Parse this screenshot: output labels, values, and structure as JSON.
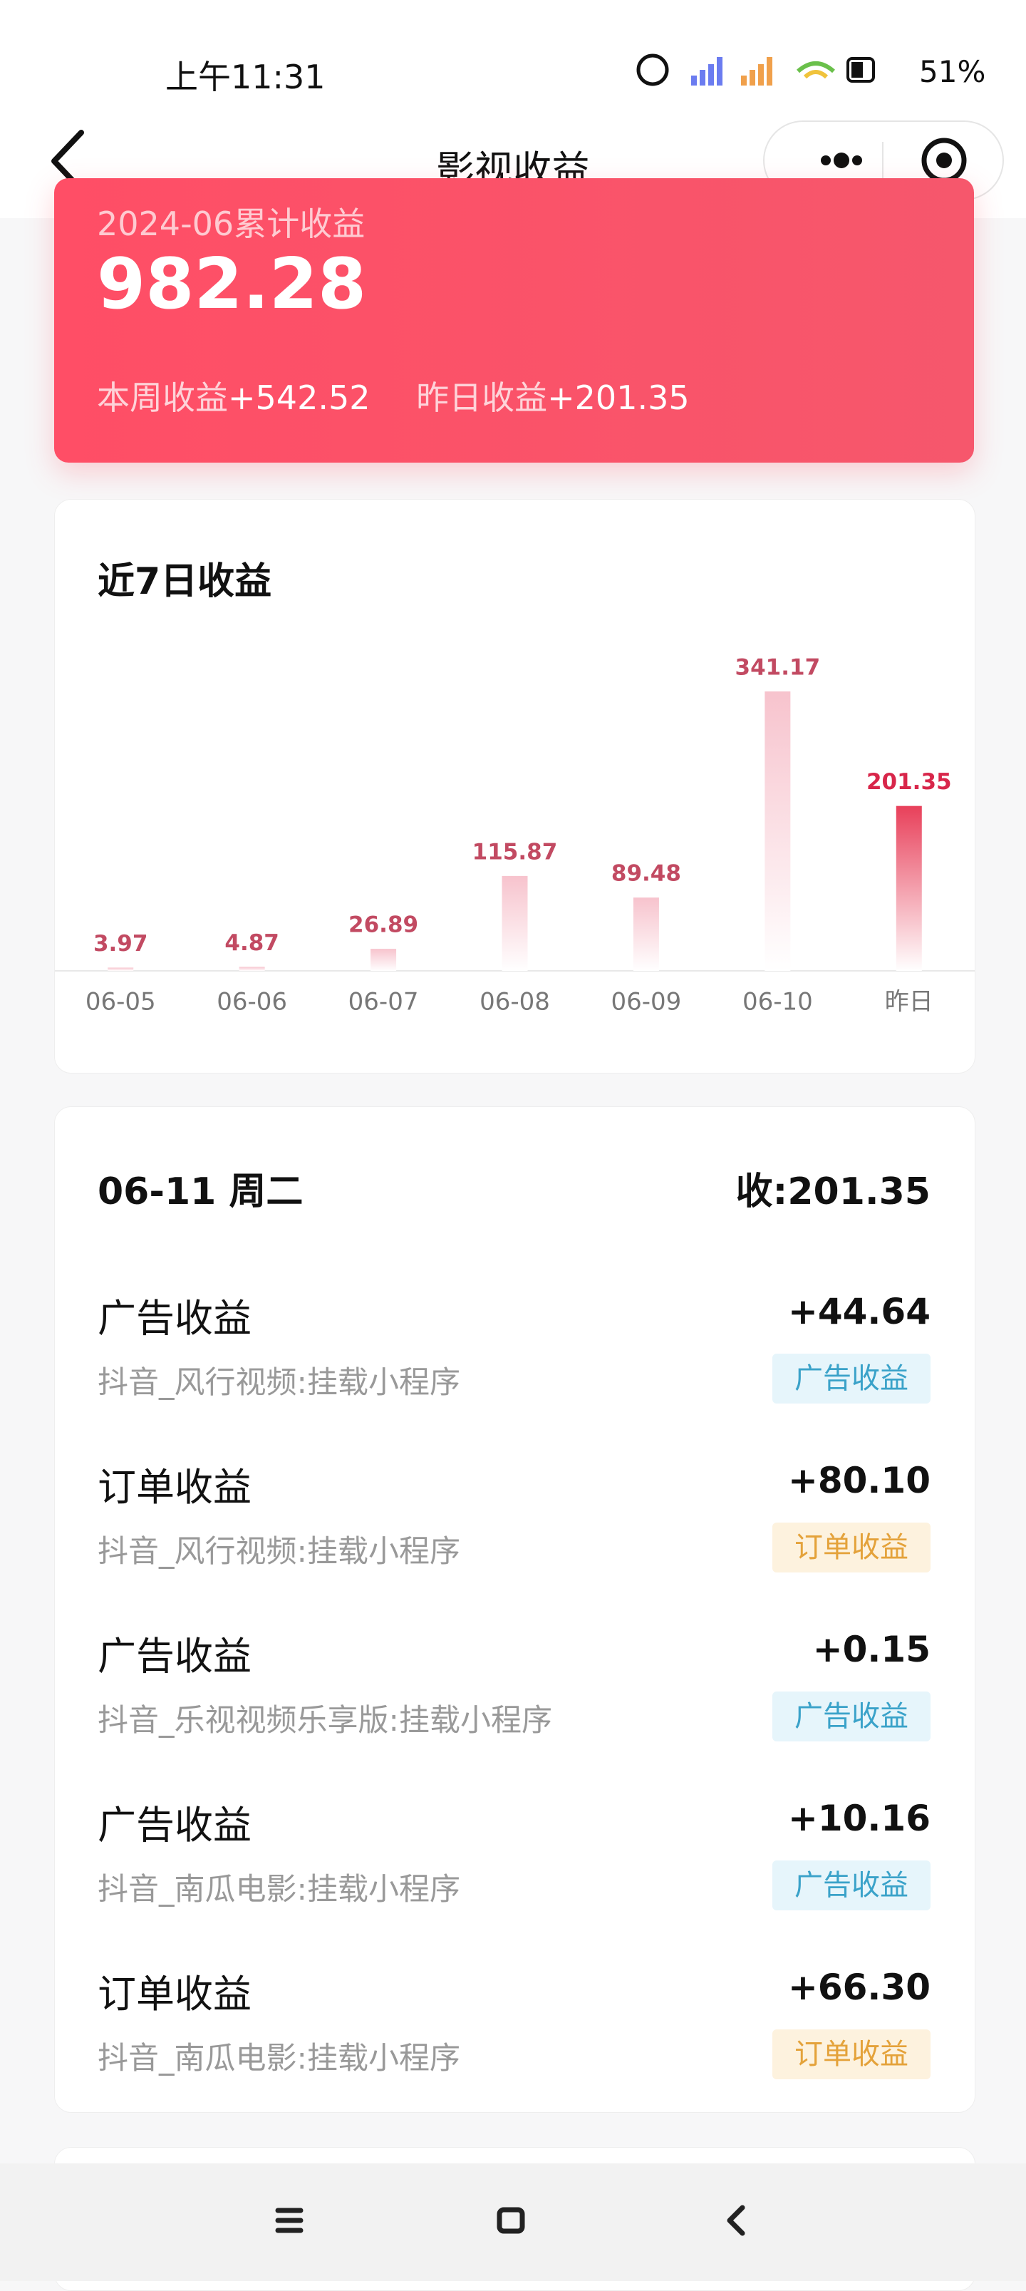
{
  "status_bar": {
    "time": "上午11:31",
    "battery": "51%"
  },
  "nav": {
    "title": "影视收益"
  },
  "summary": {
    "label": "2024-06累计收益",
    "total": "982.28",
    "week_label": "本周收益",
    "week_value": "+542.52",
    "yesterday_label": "昨日收益",
    "yesterday_value": "+201.35"
  },
  "chart_data": {
    "type": "bar",
    "title": "近7日收益",
    "categories": [
      "06-05",
      "06-06",
      "06-07",
      "06-08",
      "06-09",
      "06-10",
      "昨日"
    ],
    "values": [
      3.97,
      4.87,
      26.89,
      115.87,
      89.48,
      341.17,
      201.35
    ],
    "colors": [
      "#f7c3cd",
      "#f7c3cd",
      "#f7c3cd",
      "#f7c3cd",
      "#f7c3cd",
      "#f7c3cd",
      "#e8405a"
    ],
    "label_colors": [
      "#c24a62",
      "#c24a62",
      "#c24a62",
      "#c24a62",
      "#c24a62",
      "#c24a62",
      "#d8264a"
    ]
  },
  "detail": {
    "date": "06-11 周二",
    "total": "收:201.35",
    "items": [
      {
        "title": "广告收益",
        "source": "抖音_风行视频:挂载小程序",
        "amount": "+44.64",
        "tag": "广告收益",
        "kind": "ad"
      },
      {
        "title": "订单收益",
        "source": "抖音_风行视频:挂载小程序",
        "amount": "+80.10",
        "tag": "订单收益",
        "kind": "order"
      },
      {
        "title": "广告收益",
        "source": "抖音_乐视视频乐享版:挂载小程序",
        "amount": "+0.15",
        "tag": "广告收益",
        "kind": "ad"
      },
      {
        "title": "广告收益",
        "source": "抖音_南瓜电影:挂载小程序",
        "amount": "+10.16",
        "tag": "广告收益",
        "kind": "ad"
      },
      {
        "title": "订单收益",
        "source": "抖音_南瓜电影:挂载小程序",
        "amount": "+66.30",
        "tag": "订单收益",
        "kind": "order"
      }
    ]
  }
}
